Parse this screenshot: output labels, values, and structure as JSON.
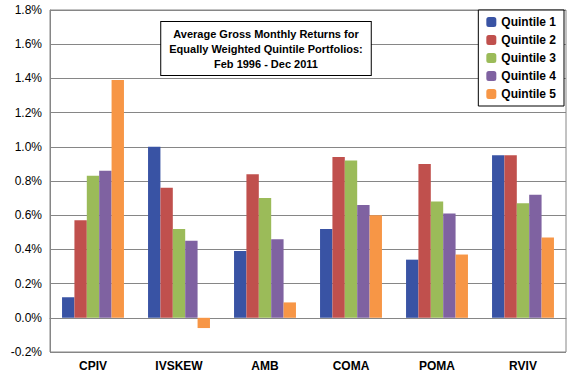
{
  "chart_data": {
    "type": "bar",
    "title": "Average Gross Monthly Returns for\nEqually Weighted Quintile Portfolios:\nFeb 1996 - Dec 2011",
    "categories": [
      "CPIV",
      "IVSKEW",
      "AMB",
      "COMA",
      "POMA",
      "RVIV"
    ],
    "series": [
      {
        "name": "Quintile 1",
        "color": "#3953A4",
        "values": [
          0.12,
          1.0,
          0.39,
          0.52,
          0.34,
          0.95
        ]
      },
      {
        "name": "Quintile 2",
        "color": "#C0504D",
        "values": [
          0.57,
          0.76,
          0.84,
          0.94,
          0.9,
          0.95
        ]
      },
      {
        "name": "Quintile 3",
        "color": "#9BBB59",
        "values": [
          0.83,
          0.52,
          0.7,
          0.92,
          0.68,
          0.67
        ]
      },
      {
        "name": "Quintile 4",
        "color": "#7F62A1",
        "values": [
          0.86,
          0.45,
          0.46,
          0.66,
          0.61,
          0.72
        ]
      },
      {
        "name": "Quintile 5",
        "color": "#F79646",
        "values": [
          1.39,
          -0.06,
          0.09,
          0.6,
          0.37,
          0.47
        ]
      }
    ],
    "ylim": [
      -0.2,
      1.8
    ],
    "yticks": [
      {
        "value": -0.2,
        "label": "-0.2%"
      },
      {
        "value": 0,
        "label": "0.0%"
      },
      {
        "value": 0.2,
        "label": "0.2%"
      },
      {
        "value": 0.4,
        "label": "0.4%"
      },
      {
        "value": 0.6,
        "label": "0.6%"
      },
      {
        "value": 0.8,
        "label": "0.8%"
      },
      {
        "value": 1.0,
        "label": "1.0%"
      },
      {
        "value": 1.2,
        "label": "1.2%"
      },
      {
        "value": 1.4,
        "label": "1.4%"
      },
      {
        "value": 1.6,
        "label": "1.6%"
      },
      {
        "value": 1.8,
        "label": "1.8%"
      }
    ],
    "grid": true,
    "legend": "top-right"
  }
}
